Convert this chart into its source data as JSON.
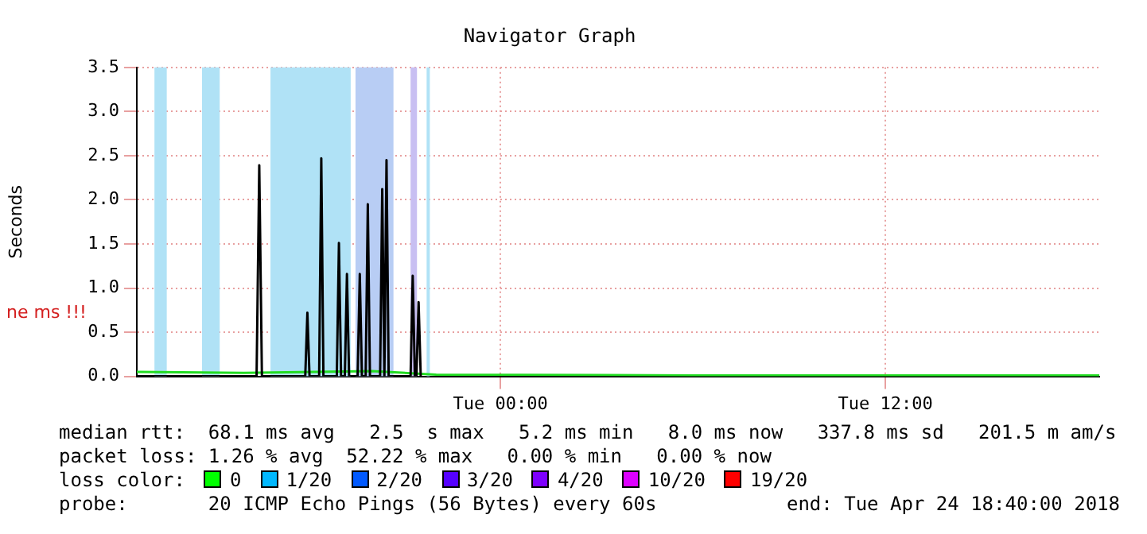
{
  "chart_data": {
    "type": "line",
    "title": "Navigator Graph",
    "ylabel": "Seconds",
    "xlim": [
      "2018-04-23T12:40",
      "2018-04-24T18:40"
    ],
    "xticks": [
      {
        "value": "2018-04-24T00:00",
        "label": "Tue 00:00"
      },
      {
        "value": "2018-04-24T12:00",
        "label": "Tue 12:00"
      }
    ],
    "ylim": [
      0,
      3.5
    ],
    "yticks": [
      {
        "value": 0,
        "label": "0.0"
      },
      0.5,
      {
        "value": 1,
        "label": "1.0"
      },
      1.5,
      {
        "value": 2,
        "label": "2.0"
      },
      2.5,
      {
        "value": 3,
        "label": "3.0"
      },
      3.5
    ],
    "grid": true,
    "legend": false,
    "bands": [
      {
        "axis": "x",
        "from": "2018-04-23T13:13",
        "to": "2018-04-23T13:36",
        "color": "#b0e2f6"
      },
      {
        "axis": "x",
        "from": "2018-04-23T14:42",
        "to": "2018-04-23T15:15",
        "color": "#b0e2f6"
      },
      {
        "axis": "x",
        "from": "2018-04-23T16:50",
        "to": "2018-04-23T19:20",
        "color": "#b0e2f6"
      },
      {
        "axis": "x",
        "from": "2018-04-23T19:29",
        "to": "2018-04-23T20:40",
        "color": "#b8cdf4"
      },
      {
        "axis": "x",
        "from": "2018-04-23T21:12",
        "to": "2018-04-23T21:24",
        "color": "#c8bff2"
      },
      {
        "axis": "x",
        "from": "2018-04-23T21:42",
        "to": "2018-04-23T21:48",
        "color": "#b0e2f6"
      }
    ],
    "series": [
      {
        "color": "#000000",
        "x": [
          "2018-04-23T12:40",
          "2018-04-23T16:24",
          "2018-04-23T16:29",
          "2018-04-23T16:34",
          "2018-04-23T17:55",
          "2018-04-23T17:59",
          "2018-04-23T18:03",
          "2018-04-23T18:21",
          "2018-04-23T18:25",
          "2018-04-23T18:29",
          "2018-04-23T18:54",
          "2018-04-23T18:58",
          "2018-04-23T19:02",
          "2018-04-23T19:09",
          "2018-04-23T19:13",
          "2018-04-23T19:17",
          "2018-04-23T19:33",
          "2018-04-23T19:37",
          "2018-04-23T19:41",
          "2018-04-23T19:48",
          "2018-04-23T19:52",
          "2018-04-23T19:56",
          "2018-04-23T20:15",
          "2018-04-23T20:19",
          "2018-04-23T20:23",
          "2018-04-23T20:27",
          "2018-04-23T20:31",
          "2018-04-23T21:12",
          "2018-04-23T21:16",
          "2018-04-23T21:20",
          "2018-04-23T21:23",
          "2018-04-23T21:27",
          "2018-04-23T21:31"
        ],
        "values": [
          0,
          0,
          2.39,
          0,
          0,
          0.72,
          0,
          0,
          2.47,
          0,
          0,
          1.51,
          0,
          0,
          1.16,
          0,
          0,
          1.16,
          0,
          0,
          1.95,
          0,
          0,
          2.12,
          0,
          2.45,
          0,
          0,
          1.14,
          0,
          0,
          0.84,
          0
        ]
      },
      {
        "color": "#22dd22",
        "x": [
          "2018-04-23T12:40",
          "2018-04-23T16:00",
          "2018-04-23T20:00",
          "2018-04-23T22:00",
          "2018-04-24T06:00",
          "2018-04-24T18:40"
        ],
        "values": [
          0.05,
          0.04,
          0.06,
          0.02,
          0.01,
          0.01
        ]
      }
    ],
    "annotations": [
      "ne ms !!!",
      "median rtt:  68.1 ms avg   2.5  s max   5.2 ms min   8.0 ms now   337.8 ms sd   201.5 m am/s",
      "packet loss: 1.26 % avg  52.22 % max   0.00 % min   0.00 % now",
      "loss color:",
      "0",
      "1/20",
      "2/20",
      "3/20",
      "4/20",
      "10/20",
      "19/20",
      "probe:       20 ICMP Echo Pings (56 Bytes) every 60s",
      "end: Tue Apr 24 18:40:00 2018"
    ]
  }
}
